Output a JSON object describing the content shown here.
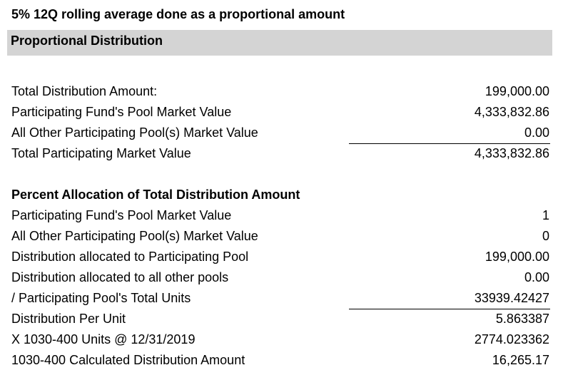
{
  "title": "5% 12Q rolling average done as a proportional amount",
  "section_header": "Proportional Distribution",
  "summary_rows": [
    {
      "label": "Total Distribution Amount:",
      "value": "199,000.00"
    },
    {
      "label": "Participating Fund's Pool Market Value",
      "value": "4,333,832.86"
    },
    {
      "label": "All Other Participating Pool(s) Market Value",
      "value": "0.00"
    },
    {
      "label": "Total Participating Market Value",
      "value": "4,333,832.86"
    }
  ],
  "allocation_heading": "Percent Allocation of Total Distribution Amount",
  "allocation_rows": [
    {
      "label": "Participating Fund's Pool Market Value",
      "value": "1"
    },
    {
      "label": "All Other Participating Pool(s) Market Value",
      "value": "0"
    },
    {
      "label": "Distribution allocated to Participating Pool",
      "value": "199,000.00"
    },
    {
      "label": "Distribution allocated to all other pools",
      "value": "0.00"
    },
    {
      "label": "/ Participating Pool's Total Units",
      "value": "33939.42427"
    },
    {
      "label": "Distribution Per Unit",
      "value": "5.863387"
    },
    {
      "label": "X 1030-400 Units @ 12/31/2019",
      "value": "2774.023362"
    },
    {
      "label": "1030-400 Calculated Distribution Amount",
      "value": "16,265.17"
    }
  ]
}
